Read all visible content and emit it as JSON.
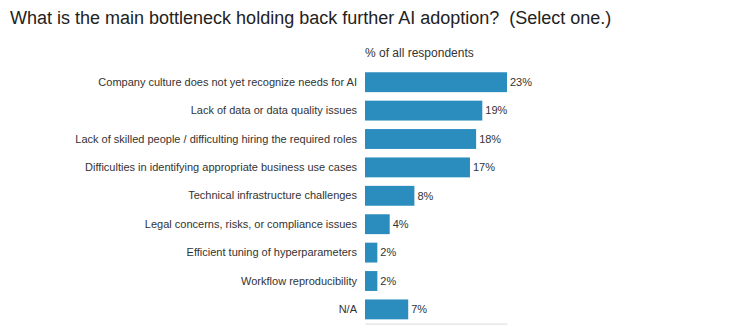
{
  "chart_data": {
    "type": "bar",
    "orientation": "horizontal",
    "title": "What is the main bottleneck holding back further AI adoption?  (Select one.)",
    "xlabel": "% of all respondents",
    "categories": [
      "Company culture does not yet recognize needs for AI",
      "Lack of data or data quality issues",
      "Lack of skilled people / difficulting hiring the required roles",
      "Difficulties in identifying appropriate business use cases",
      "Technical infrastructure challenges",
      "Legal concerns, risks, or compliance issues",
      "Efficient tuning of hyperparameters",
      "Workflow reproducibility",
      "N/A"
    ],
    "values": [
      23,
      19,
      18,
      17,
      8,
      4,
      2,
      2,
      7
    ],
    "value_labels": [
      "23%",
      "19%",
      "18%",
      "17%",
      "8%",
      "4%",
      "2%",
      "2%",
      "7%"
    ],
    "color": "#2b8cbe",
    "xlim": [
      0,
      23
    ],
    "data_labels": true,
    "tick_labels": "y"
  }
}
